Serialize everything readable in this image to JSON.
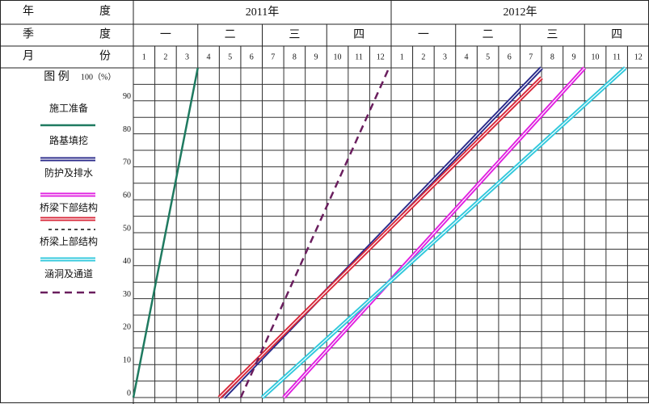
{
  "header": {
    "row_labels": [
      [
        "年",
        "度"
      ],
      [
        "季",
        "度"
      ],
      [
        "月",
        "份"
      ]
    ],
    "years": [
      "2011年",
      "2012年"
    ],
    "quarters": [
      "一",
      "二",
      "三",
      "四",
      "一",
      "二",
      "三",
      "四"
    ],
    "months": [
      "1",
      "2",
      "3",
      "4",
      "5",
      "6",
      "7",
      "8",
      "9",
      "10",
      "11",
      "12",
      "1",
      "2",
      "3",
      "4",
      "5",
      "6",
      "7",
      "8",
      "9",
      "10",
      "11",
      "12"
    ]
  },
  "chart_data": {
    "type": "line",
    "legend_title": "图 例",
    "xlim": [
      0,
      24
    ],
    "ylim": [
      0,
      100
    ],
    "yticks": [
      0,
      10,
      20,
      30,
      40,
      50,
      60,
      70,
      80,
      90,
      {
        "value": 100,
        "label": "100（%）"
      }
    ],
    "yminor": [
      5,
      15,
      25,
      35,
      45,
      55,
      65,
      75,
      85,
      95
    ],
    "grid": true,
    "series": [
      {
        "name": "施工准备",
        "color": "#1f7a60",
        "style": "solid",
        "x": [
          0,
          3
        ],
        "values": [
          0,
          100
        ]
      },
      {
        "name": "路基填挖",
        "color": "#2a2a8a",
        "style": "double",
        "x": [
          4.2,
          19
        ],
        "values": [
          0,
          100
        ]
      },
      {
        "name": "防护及排水",
        "color": "#e020e0",
        "style": "double",
        "x": [
          7,
          21
        ],
        "values": [
          0,
          100
        ]
      },
      {
        "name": "桥梁下部结构",
        "color": "#d8283a",
        "style": "double",
        "x": [
          4,
          19
        ],
        "values": [
          0,
          97
        ]
      },
      {
        "name": "桥梁上部结构",
        "color": "#30c8dc",
        "style": "double",
        "x": [
          6,
          22.9
        ],
        "values": [
          0,
          100
        ]
      },
      {
        "name": "涵洞及通道",
        "color": "#6a1e5e",
        "style": "dashed",
        "x": [
          5,
          11.9
        ],
        "values": [
          0,
          100
        ]
      }
    ]
  }
}
